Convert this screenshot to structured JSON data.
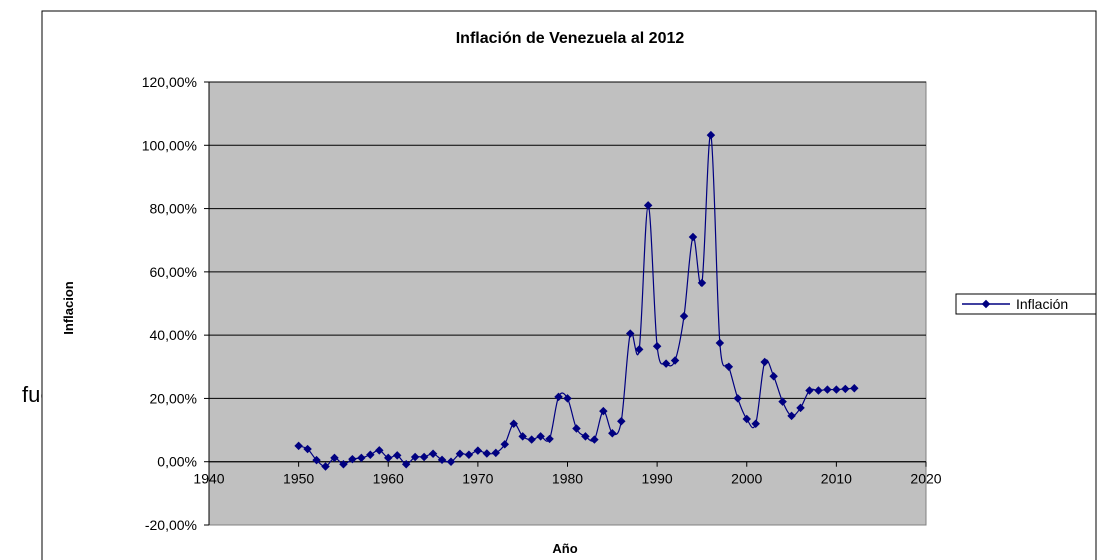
{
  "background_text": "fue",
  "chart_data": {
    "type": "line",
    "title": "Inflación de Venezuela al 2012",
    "xlabel": "Año",
    "ylabel": "Inflacion",
    "xlim": [
      1940,
      2020
    ],
    "ylim": [
      -0.2,
      1.2
    ],
    "x_ticks": [
      1940,
      1950,
      1960,
      1970,
      1980,
      1990,
      2000,
      2010,
      2020
    ],
    "y_ticks": [
      -0.2,
      0,
      0.2,
      0.4,
      0.6,
      0.8,
      1.0,
      1.2
    ],
    "x_tick_labels": [
      "1940",
      "1950",
      "1960",
      "1970",
      "1980",
      "1990",
      "2000",
      "2010",
      "2020"
    ],
    "y_tick_labels": [
      "-20,00%",
      "0,00%",
      "20,00%",
      "40,00%",
      "60,00%",
      "80,00%",
      "100,00%",
      "120,00%"
    ],
    "grid": "horizontal",
    "legend": "right",
    "colors": {
      "series": "#000080",
      "plot_bg": "#c0c0c0",
      "grid": "#000000"
    },
    "series": [
      {
        "name": "Inflación",
        "x": [
          1950,
          1951,
          1952,
          1953,
          1954,
          1955,
          1956,
          1957,
          1958,
          1959,
          1960,
          1961,
          1962,
          1963,
          1964,
          1965,
          1966,
          1967,
          1968,
          1969,
          1970,
          1971,
          1972,
          1973,
          1974,
          1975,
          1976,
          1977,
          1978,
          1979,
          1980,
          1981,
          1982,
          1983,
          1984,
          1985,
          1986,
          1987,
          1988,
          1989,
          1990,
          1991,
          1992,
          1993,
          1994,
          1995,
          1996,
          1997,
          1998,
          1999,
          2000,
          2001,
          2002,
          2003,
          2004,
          2005,
          2006,
          2007,
          2008,
          2009,
          2010,
          2011,
          2012
        ],
        "values": [
          0.05,
          0.04,
          0.005,
          -0.015,
          0.012,
          -0.008,
          0.008,
          0.012,
          0.022,
          0.036,
          0.012,
          0.02,
          -0.008,
          0.015,
          0.015,
          0.025,
          0.006,
          0.0,
          0.025,
          0.022,
          0.035,
          0.026,
          0.028,
          0.055,
          0.12,
          0.08,
          0.07,
          0.08,
          0.072,
          0.205,
          0.2,
          0.105,
          0.08,
          0.07,
          0.16,
          0.09,
          0.128,
          0.405,
          0.355,
          0.81,
          0.365,
          0.31,
          0.32,
          0.46,
          0.71,
          0.565,
          1.032,
          0.375,
          0.3,
          0.2,
          0.135,
          0.12,
          0.315,
          0.27,
          0.19,
          0.145,
          0.17,
          0.225,
          0.225,
          0.228,
          0.228,
          0.23,
          0.232
        ]
      }
    ]
  }
}
